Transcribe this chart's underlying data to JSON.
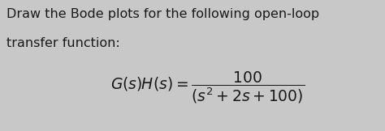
{
  "background_color": "#c8c8c8",
  "text_line1": "Draw the Bode plots for the following open-loop",
  "text_line2": "transfer function:",
  "font_size_body": 11.5,
  "font_size_eq": 13.5,
  "text_color": "#1a1a1a",
  "fig_width": 4.74,
  "fig_height": 1.62,
  "dpi": 100
}
